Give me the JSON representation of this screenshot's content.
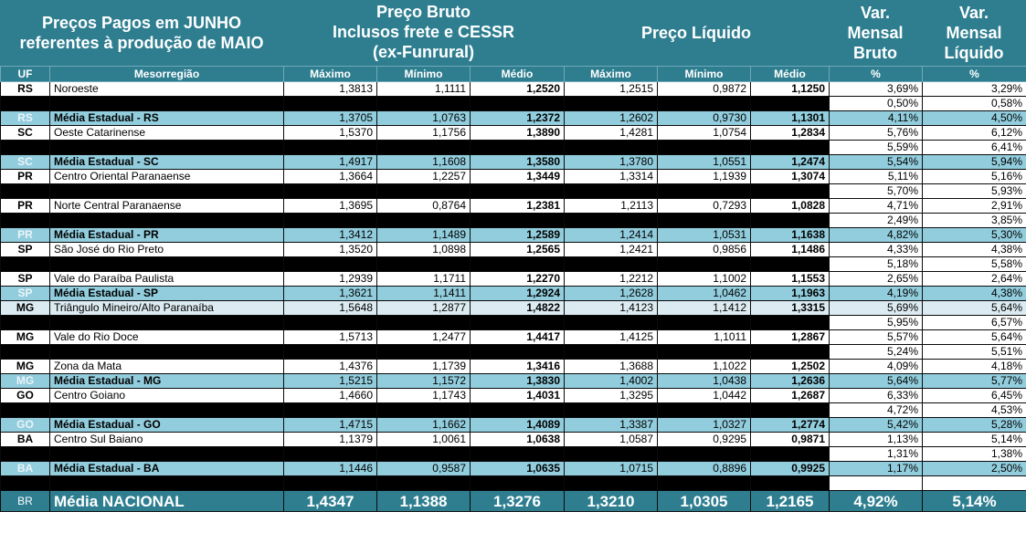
{
  "header": {
    "title": [
      "Preços Pagos em JUNHO",
      "referentes à produção de MAIO"
    ],
    "bruto": [
      "Preço Bruto",
      "Inclusos frete e CESSR",
      "(ex-Funrural)"
    ],
    "liquido": "Preço Líquido",
    "var_bruto": [
      "Var.",
      "Mensal",
      "Bruto"
    ],
    "var_liquido": [
      "Var.",
      "Mensal",
      "Líquido"
    ]
  },
  "columns": [
    "UF",
    "Mesorregião",
    "Máximo",
    "Mínimo",
    "Médio",
    "Máximo",
    "Mínimo",
    "Médio",
    "%",
    "%"
  ],
  "rows": [
    {
      "style": "w",
      "uf": "RS",
      "name": "Noroeste",
      "bmax": "1,3813",
      "bmin": "1,1111",
      "bmed": "1,2520",
      "lmax": "1,2515",
      "lmin": "0,9872",
      "lmed": "1,1250",
      "vb": "3,69%",
      "vl": "3,29%"
    },
    {
      "style": "bk",
      "uf": "",
      "name": "",
      "bmax": "",
      "bmin": "",
      "bmed": "",
      "lmax": "",
      "lmin": "",
      "lmed": "",
      "vb": "0,50%",
      "vl": "0,58%"
    },
    {
      "style": "m",
      "uf": "RS",
      "name": "Média Estadual - RS",
      "bmax": "1,3705",
      "bmin": "1,0763",
      "bmed": "1,2372",
      "lmax": "1,2602",
      "lmin": "0,9730",
      "lmed": "1,1301",
      "vb": "4,11%",
      "vl": "4,50%"
    },
    {
      "style": "w",
      "uf": "SC",
      "name": "Oeste Catarinense",
      "bmax": "1,5370",
      "bmin": "1,1756",
      "bmed": "1,3890",
      "lmax": "1,4281",
      "lmin": "1,0754",
      "lmed": "1,2834",
      "vb": "5,76%",
      "vl": "6,12%"
    },
    {
      "style": "bk",
      "uf": "",
      "name": "",
      "bmax": "",
      "bmin": "",
      "bmed": "",
      "lmax": "",
      "lmin": "",
      "lmed": "",
      "vb": "5,59%",
      "vl": "6,41%"
    },
    {
      "style": "m",
      "uf": "SC",
      "name": "Média Estadual - SC",
      "bmax": "1,4917",
      "bmin": "1,1608",
      "bmed": "1,3580",
      "lmax": "1,3780",
      "lmin": "1,0551",
      "lmed": "1,2474",
      "vb": "5,54%",
      "vl": "5,94%"
    },
    {
      "style": "w",
      "uf": "PR",
      "name": "Centro Oriental Paranaense",
      "bmax": "1,3664",
      "bmin": "1,2257",
      "bmed": "1,3449",
      "lmax": "1,3314",
      "lmin": "1,1939",
      "lmed": "1,3074",
      "vb": "5,11%",
      "vl": "5,16%"
    },
    {
      "style": "bk",
      "uf": "",
      "name": "",
      "bmax": "",
      "bmin": "",
      "bmed": "",
      "lmax": "",
      "lmin": "",
      "lmed": "",
      "vb": "5,70%",
      "vl": "5,93%"
    },
    {
      "style": "w",
      "uf": "PR",
      "name": "Norte Central Paranaense",
      "bmax": "1,3695",
      "bmin": "0,8764",
      "bmed": "1,2381",
      "lmax": "1,2113",
      "lmin": "0,7293",
      "lmed": "1,0828",
      "vb": "4,71%",
      "vl": "2,91%"
    },
    {
      "style": "bk",
      "uf": "",
      "name": "",
      "bmax": "",
      "bmin": "",
      "bmed": "",
      "lmax": "",
      "lmin": "",
      "lmed": "",
      "vb": "2,49%",
      "vl": "3,85%"
    },
    {
      "style": "m",
      "uf": "PR",
      "name": "Média Estadual - PR",
      "bmax": "1,3412",
      "bmin": "1,1489",
      "bmed": "1,2589",
      "lmax": "1,2414",
      "lmin": "1,0531",
      "lmed": "1,1638",
      "vb": "4,82%",
      "vl": "5,30%"
    },
    {
      "style": "w",
      "uf": "SP",
      "name": "São José do Rio Preto",
      "bmax": "1,3520",
      "bmin": "1,0898",
      "bmed": "1,2565",
      "lmax": "1,2421",
      "lmin": "0,9856",
      "lmed": "1,1486",
      "vb": "4,33%",
      "vl": "4,38%"
    },
    {
      "style": "bk",
      "uf": "",
      "name": "",
      "bmax": "",
      "bmin": "",
      "bmed": "",
      "lmax": "",
      "lmin": "",
      "lmed": "",
      "vb": "5,18%",
      "vl": "5,58%"
    },
    {
      "style": "w",
      "uf": "SP",
      "name": "Vale do Paraíba Paulista",
      "bmax": "1,2939",
      "bmin": "1,1711",
      "bmed": "1,2270",
      "lmax": "1,2212",
      "lmin": "1,1002",
      "lmed": "1,1553",
      "vb": "2,65%",
      "vl": "2,64%"
    },
    {
      "style": "m",
      "uf": "SP",
      "name": "Média Estadual - SP",
      "bmax": "1,3621",
      "bmin": "1,1411",
      "bmed": "1,2924",
      "lmax": "1,2628",
      "lmin": "1,0462",
      "lmed": "1,1963",
      "vb": "4,19%",
      "vl": "4,38%"
    },
    {
      "style": "lb",
      "uf": "MG",
      "name": "Triângulo Mineiro/Alto Paranaíba",
      "bmax": "1,5648",
      "bmin": "1,2877",
      "bmed": "1,4822",
      "lmax": "1,4123",
      "lmin": "1,1412",
      "lmed": "1,3315",
      "vb": "5,69%",
      "vl": "5,64%"
    },
    {
      "style": "bk",
      "uf": "",
      "name": "",
      "bmax": "",
      "bmin": "",
      "bmed": "",
      "lmax": "",
      "lmin": "",
      "lmed": "",
      "vb": "5,95%",
      "vl": "6,57%"
    },
    {
      "style": "w",
      "uf": "MG",
      "name": "Vale do Rio Doce",
      "bmax": "1,5713",
      "bmin": "1,2477",
      "bmed": "1,4417",
      "lmax": "1,4125",
      "lmin": "1,1011",
      "lmed": "1,2867",
      "vb": "5,57%",
      "vl": "5,64%"
    },
    {
      "style": "bk",
      "uf": "",
      "name": "",
      "bmax": "",
      "bmin": "",
      "bmed": "",
      "lmax": "",
      "lmin": "",
      "lmed": "",
      "vb": "5,24%",
      "vl": "5,51%"
    },
    {
      "style": "w",
      "uf": "MG",
      "name": "Zona da Mata",
      "bmax": "1,4376",
      "bmin": "1,1739",
      "bmed": "1,3416",
      "lmax": "1,3688",
      "lmin": "1,1022",
      "lmed": "1,2502",
      "vb": "4,09%",
      "vl": "4,18%"
    },
    {
      "style": "m",
      "uf": "MG",
      "name": "Média Estadual - MG",
      "bmax": "1,5215",
      "bmin": "1,1572",
      "bmed": "1,3830",
      "lmax": "1,4002",
      "lmin": "1,0438",
      "lmed": "1,2636",
      "vb": "5,64%",
      "vl": "5,77%"
    },
    {
      "style": "w",
      "uf": "GO",
      "name": "Centro Goiano",
      "bmax": "1,4660",
      "bmin": "1,1743",
      "bmed": "1,4031",
      "lmax": "1,3295",
      "lmin": "1,0442",
      "lmed": "1,2687",
      "vb": "6,33%",
      "vl": "6,45%"
    },
    {
      "style": "bk",
      "uf": "",
      "name": "",
      "bmax": "",
      "bmin": "",
      "bmed": "",
      "lmax": "",
      "lmin": "",
      "lmed": "",
      "vb": "4,72%",
      "vl": "4,53%"
    },
    {
      "style": "m",
      "uf": "GO",
      "name": "Média Estadual - GO",
      "bmax": "1,4715",
      "bmin": "1,1662",
      "bmed": "1,4089",
      "lmax": "1,3387",
      "lmin": "1,0327",
      "lmed": "1,2774",
      "vb": "5,42%",
      "vl": "5,28%"
    },
    {
      "style": "w",
      "uf": "BA",
      "name": "Centro Sul Baiano",
      "bmax": "1,1379",
      "bmin": "1,0061",
      "bmed": "1,0638",
      "lmax": "1,0587",
      "lmin": "0,9295",
      "lmed": "0,9871",
      "vb": "1,13%",
      "vl": "5,14%"
    },
    {
      "style": "bk",
      "uf": "",
      "name": "",
      "bmax": "",
      "bmin": "",
      "bmed": "",
      "lmax": "",
      "lmin": "",
      "lmed": "",
      "vb": "1,31%",
      "vl": "1,38%"
    },
    {
      "style": "m",
      "uf": "BA",
      "name": "Média Estadual - BA",
      "bmax": "1,1446",
      "bmin": "0,9587",
      "bmed": "1,0635",
      "lmax": "1,0715",
      "lmin": "0,8896",
      "lmed": "0,9925",
      "vb": "1,17%",
      "vl": "2,50%"
    },
    {
      "style": "gap",
      "uf": "",
      "name": "",
      "bmax": "",
      "bmin": "",
      "bmed": "",
      "lmax": "",
      "lmin": "",
      "lmed": "",
      "vb": "",
      "vl": ""
    }
  ],
  "national": {
    "uf": "BR",
    "name": "Média NACIONAL",
    "bmax": "1,4347",
    "bmin": "1,1388",
    "bmed": "1,3276",
    "lmax": "1,3210",
    "lmin": "1,0305",
    "lmed": "1,2165",
    "vb": "4,92%",
    "vl": "5,14%"
  },
  "colors": {
    "header_teal": "#2e7e90",
    "state_avg_blue": "#92cddd",
    "light_blue": "#dcebf1"
  }
}
